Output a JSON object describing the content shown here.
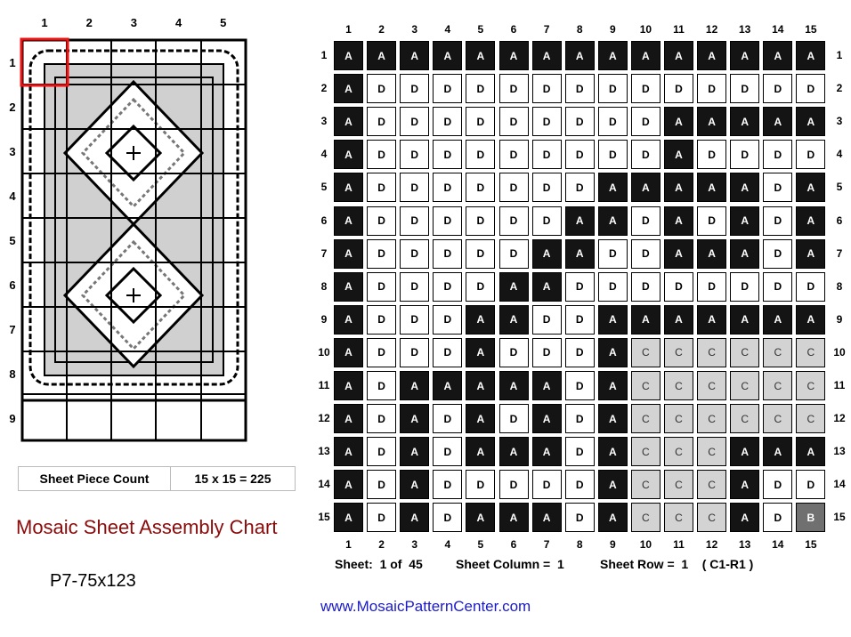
{
  "thumbnail": {
    "col_labels": [
      "1",
      "2",
      "3",
      "4",
      "5"
    ],
    "row_labels": [
      "1",
      "2",
      "3",
      "4",
      "5",
      "6",
      "7",
      "8",
      "9"
    ],
    "selected_sheet": {
      "column": 1,
      "row": 1
    },
    "highlight_color": "#ee1111"
  },
  "grid": {
    "col_labels": [
      "1",
      "2",
      "3",
      "4",
      "5",
      "6",
      "7",
      "8",
      "9",
      "10",
      "11",
      "12",
      "13",
      "14",
      "15"
    ],
    "row_labels": [
      "1",
      "2",
      "3",
      "4",
      "5",
      "6",
      "7",
      "8",
      "9",
      "10",
      "11",
      "12",
      "13",
      "14",
      "15"
    ],
    "rows": [
      "AAAAAAAAAAAAAAA",
      "ADDDDDDDDDDDDDD",
      "ADDDDDDDDDAAAAA",
      "ADDDDDDDDDADDDD",
      "ADDDDDDDAAAAADA",
      "ADDDDDDAADADADA",
      "ADDDDDAADDAAADA",
      "ADDDDAADDDDDDDD",
      "ADDDAADDAAAAAAA",
      "ADDDADDDACCCCCC",
      "ADAAAAADACCCCCC",
      "ADADADADACCCCCC",
      "ADADAAADACCCAAA",
      "ADADDDDDACCCADD",
      "ADADAAADACCCADB"
    ],
    "colors": {
      "A": {
        "bg": "#141414",
        "fg": "#ffffff"
      },
      "B": {
        "bg": "#707070",
        "fg": "#ffffff"
      },
      "C": {
        "bg": "#d3d3d3",
        "fg": "#333333"
      },
      "D": {
        "bg": "#ffffff",
        "fg": "#000000"
      }
    }
  },
  "piece_count": {
    "label": "Sheet Piece Count",
    "value": "15 x 15 = 225"
  },
  "chart_title": "Mosaic Sheet Assembly Chart",
  "pattern_code": "P7-75x123",
  "sheet_info": {
    "sheet": "Sheet:  1 of  45",
    "column": "Sheet Column =  1",
    "row": "Sheet Row =  1    ( C1-R1 )"
  },
  "website": "www.MosaicPatternCenter.com"
}
